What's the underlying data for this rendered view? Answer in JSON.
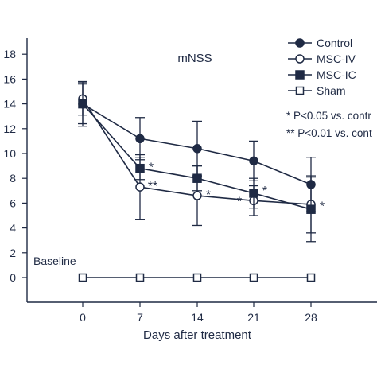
{
  "chart_data": {
    "type": "line",
    "title": "mNSS",
    "xlabel": "Days after treatment",
    "ylabel": "",
    "x": [
      0,
      7,
      14,
      21,
      28
    ],
    "xticks": [
      "0",
      "7",
      "14",
      "21",
      "28"
    ],
    "yticks": [
      "0",
      "2",
      "4",
      "6",
      "8",
      "10",
      "12",
      "14",
      "16",
      "18"
    ],
    "ylim": [
      -1,
      18
    ],
    "grid": false,
    "legend_position": "top-right",
    "series": [
      {
        "name": "Control",
        "marker": "filled-circle",
        "values": [
          14.0,
          11.2,
          10.4,
          9.4,
          7.5
        ],
        "error": [
          1.6,
          1.7,
          2.2,
          1.6,
          2.2
        ]
      },
      {
        "name": "MSC-IV",
        "marker": "open-circle",
        "values": [
          14.4,
          7.3,
          6.6,
          6.2,
          5.9
        ],
        "error": [
          1.3,
          2.6,
          2.4,
          1.2,
          2.3
        ]
      },
      {
        "name": "MSC-IC",
        "marker": "filled-square",
        "values": [
          14.0,
          8.8,
          8.0,
          6.8,
          5.5
        ],
        "error": [
          1.8,
          0.9,
          1.0,
          1.2,
          2.6
        ]
      },
      {
        "name": "Sham",
        "marker": "open-square",
        "values": [
          0,
          0,
          0,
          0,
          0
        ],
        "error": [
          0,
          0,
          0,
          0,
          0
        ]
      }
    ],
    "annotations": [
      {
        "text": "*",
        "x": 7,
        "y": 8.8
      },
      {
        "text": "**",
        "x": 7,
        "y": 7.3
      },
      {
        "text": "*",
        "x": 14,
        "y": 6.6
      },
      {
        "text": "*",
        "x": 21,
        "y": 6.3
      },
      {
        "text": "*",
        "x": 21,
        "y": 6.8
      },
      {
        "text": "*",
        "x": 28,
        "y": 5.8
      }
    ],
    "notes": [
      "* P<0.05 vs. contr",
      "** P<0.01 vs. cont"
    ],
    "baseline_label": "Baseline",
    "colors": {
      "line": "#1f2a44",
      "axis": "#1f2a44"
    }
  }
}
